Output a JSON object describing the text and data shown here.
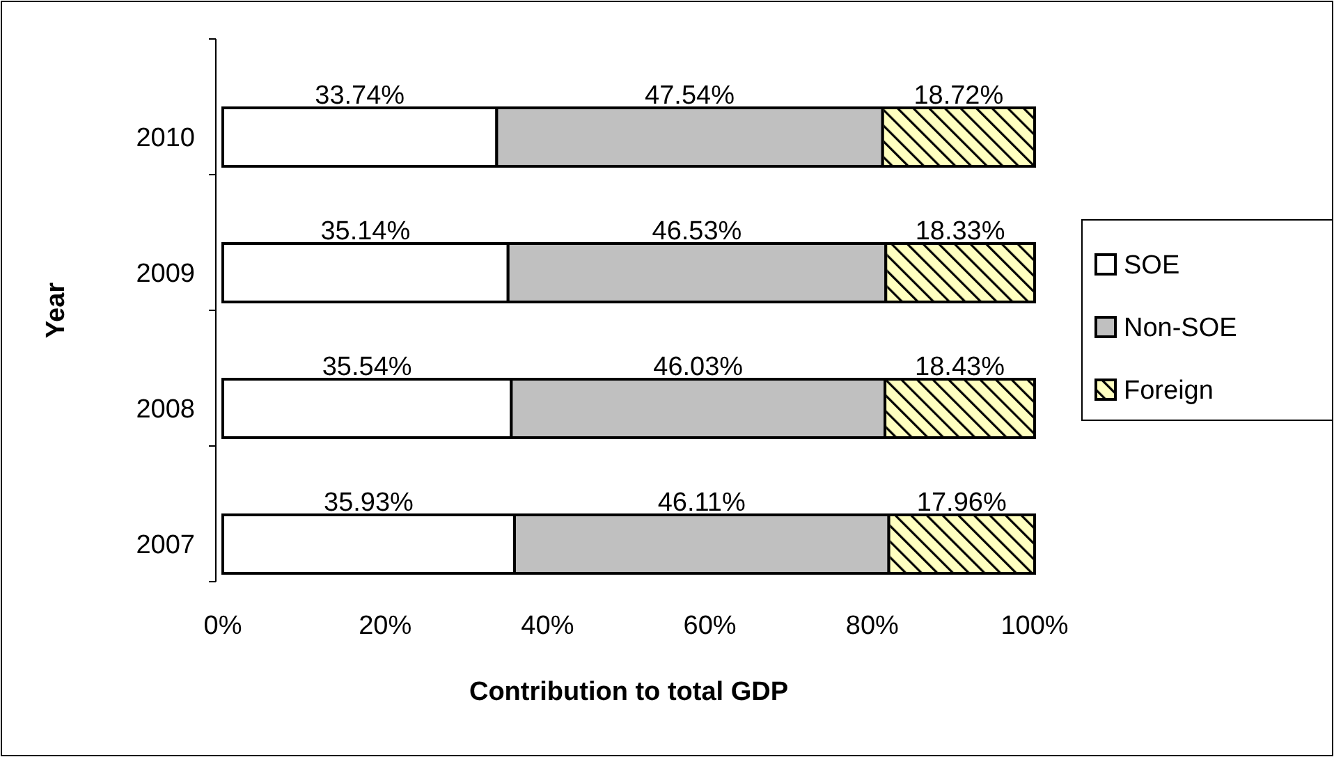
{
  "chart_data": {
    "type": "bar",
    "orientation": "horizontal",
    "stacked": true,
    "xlabel": "Contribution to total GDP",
    "ylabel": "Year",
    "categories": [
      "2010",
      "2009",
      "2008",
      "2007"
    ],
    "series": [
      {
        "name": "SOE",
        "color": "#ffffff",
        "values": [
          33.74,
          35.14,
          35.54,
          35.93
        ],
        "value_labels": [
          "33.74%",
          "35.14%",
          "35.54%",
          "35.93%"
        ]
      },
      {
        "name": "Non-SOE",
        "color": "#c0c0c0",
        "values": [
          47.54,
          46.53,
          46.03,
          46.11
        ],
        "value_labels": [
          "47.54%",
          "46.53%",
          "46.03%",
          "46.11%"
        ]
      },
      {
        "name": "Foreign",
        "color": "#ffffc0",
        "values": [
          18.72,
          18.33,
          18.43,
          17.96
        ],
        "value_labels": [
          "18.72%",
          "18.33%",
          "18.43%",
          "17.96%"
        ]
      }
    ],
    "xlim": [
      0,
      100
    ],
    "xticks": [
      {
        "value": 0,
        "label": "0%"
      },
      {
        "value": 20,
        "label": "20%"
      },
      {
        "value": 40,
        "label": "40%"
      },
      {
        "value": 60,
        "label": "60%"
      },
      {
        "value": 80,
        "label": "80%"
      },
      {
        "value": 100,
        "label": "100%"
      }
    ],
    "grid": false,
    "legend": "right"
  }
}
